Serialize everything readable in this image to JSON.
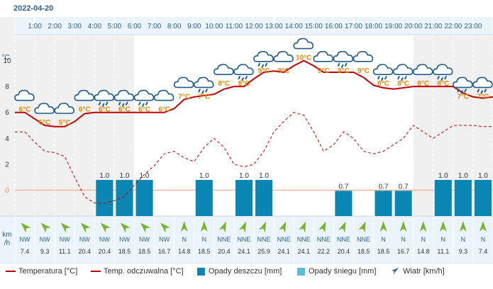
{
  "date": "2022-04-20",
  "colors": {
    "temp": "#c00000",
    "feels": "#c00000",
    "rain": "#0a86b4",
    "snow": "#5bbcd6",
    "wind_arrow": "#7ab32e",
    "axis_text": "#2a5f8c",
    "temp_label": "#e08a00"
  },
  "chart_data": {
    "type": "line",
    "hours": [
      "1:00",
      "2:00",
      "3:00",
      "4:00",
      "5:00",
      "6:00",
      "7:00",
      "8:00",
      "9:00",
      "10:00",
      "11:00",
      "12:00",
      "13:00",
      "14:00",
      "15:00",
      "16:00",
      "17:00",
      "18:00",
      "19:00",
      "20:00",
      "21:00",
      "22:00",
      "23:00"
    ],
    "y_unit_label": "°C",
    "y_ticks": [
      10,
      8,
      6,
      4,
      2,
      0
    ],
    "ylim": [
      -2,
      12
    ],
    "temperature": {
      "name": "Temperatura [°C]",
      "x": [
        0.5,
        1,
        1.5,
        2,
        2.5,
        3,
        3.5,
        4,
        4.5,
        5,
        5.5,
        6,
        6.5,
        7,
        7.5,
        8,
        8.5,
        9,
        9.5,
        10,
        10.5,
        11,
        11.5,
        12,
        12.5,
        13,
        13.5,
        14,
        14.5,
        15,
        15.5,
        16,
        16.5,
        17,
        17.5,
        18,
        18.5,
        19,
        19.5,
        20,
        20.5,
        21,
        21.5,
        22,
        22.5,
        23,
        23.5,
        24
      ],
      "values": [
        6.0,
        5.5,
        5.0,
        4.9,
        4.9,
        5.3,
        5.9,
        6.0,
        6.0,
        6.0,
        6.0,
        6.0,
        6.0,
        6.0,
        6.0,
        6.3,
        7.0,
        7.2,
        7.3,
        7.4,
        7.8,
        8.0,
        8.0,
        8.6,
        9.1,
        9.2,
        9.1,
        9.6,
        10.0,
        9.6,
        9.1,
        9.1,
        9.1,
        9.1,
        8.7,
        8.1,
        7.9,
        7.8,
        7.9,
        8.0,
        8.0,
        8.0,
        8.0,
        8.0,
        7.5,
        7.2,
        7.1,
        7.2
      ]
    },
    "feels_like": {
      "name": "Temp. odczuwalna [°C]",
      "x": [
        0.5,
        1,
        1.5,
        2,
        2.5,
        3,
        3.5,
        4,
        4.5,
        5,
        5.5,
        6,
        6.5,
        7,
        7.5,
        8,
        8.5,
        9,
        9.5,
        10,
        10.5,
        11,
        11.5,
        12,
        12.5,
        13,
        13.5,
        14,
        14.5,
        15,
        15.5,
        16,
        16.5,
        17,
        17.5,
        18,
        18.5,
        19,
        19.5,
        20,
        20.5,
        21,
        21.5,
        22,
        22.5,
        23,
        23.5,
        24
      ],
      "values": [
        4.5,
        3.7,
        3.0,
        2.9,
        2.6,
        1.0,
        -0.5,
        -1.0,
        -1.0,
        -0.8,
        -0.5,
        0.4,
        1.2,
        1.9,
        2.8,
        3.0,
        2.5,
        2.2,
        3.3,
        4.0,
        3.3,
        2.0,
        1.8,
        2.0,
        3.0,
        4.5,
        5.3,
        6.0,
        5.8,
        4.5,
        3.0,
        3.5,
        4.5,
        4.0,
        3.0,
        2.8,
        3.0,
        3.5,
        4.0,
        5.0,
        4.5,
        4.0,
        4.5,
        5.0,
        5.0,
        5.0,
        4.9,
        4.9
      ]
    },
    "rain": {
      "name": "Opady deszczu [mm]",
      "values": [
        0,
        0,
        0,
        0,
        1.0,
        1.0,
        1.0,
        0,
        0,
        1.0,
        0,
        1.0,
        1.0,
        0,
        0,
        0,
        0.7,
        0,
        0.7,
        0.7,
        0,
        1.0,
        1.0,
        1.0
      ],
      "labels": [
        "",
        "",
        "",
        "",
        "1.0",
        "1.0",
        "1.0",
        "",
        "",
        "1.0",
        "",
        "1.0",
        "1.0",
        "",
        "",
        "",
        "0.7",
        "",
        "0.7",
        "0.7",
        "",
        "1.0",
        "1.0",
        "1.0"
      ]
    },
    "snow": {
      "name": "Opady śniegu [mm]"
    },
    "wind": {
      "name": "Wiatr [km/h]",
      "unit_label": [
        "km",
        "/h"
      ],
      "directions": [
        "NW",
        "NW",
        "NW",
        "NW",
        "NW",
        "NW",
        "NW",
        "NW",
        "N",
        "N",
        "NNE",
        "NNE",
        "NNE",
        "NNE",
        "NNE",
        "NNE",
        "NNE",
        "NNE",
        "N",
        "N",
        "N",
        "N",
        "N",
        "N"
      ],
      "speeds": [
        "7.4",
        "9.3",
        "11.1",
        "20.4",
        "20.4",
        "18.5",
        "18.5",
        "16.7",
        "14.8",
        "18.5",
        "20.4",
        "24.1",
        "25.9",
        "24.1",
        "24.1",
        "22.2",
        "20.4",
        "18.5",
        "18.5",
        "16.7",
        "14.8",
        "11.1",
        "9.3",
        "7.4"
      ]
    },
    "icon_labels": [
      "6°C",
      "5°C",
      "5°C",
      "6°C",
      "6°C",
      "6°C",
      "6°C",
      "6°C",
      "7°C",
      "7°C",
      "8°C",
      "8°C",
      "9°C",
      "9°C",
      "10°C",
      "9°C",
      "9°C",
      "9°C",
      "8°C",
      "8°C",
      "8°C",
      "8°C",
      "7°C",
      "7°C"
    ],
    "icon_types": [
      "cloud",
      "cloud",
      "cloud",
      "cloud",
      "rain",
      "rain",
      "rain",
      "cloud",
      "cloud",
      "rain",
      "cloud",
      "rain",
      "rain",
      "cloud",
      "cloud",
      "cloud",
      "rain",
      "cloud",
      "rain",
      "rain",
      "cloud",
      "rain",
      "rain",
      "rain"
    ],
    "icon_temps": [
      6,
      5,
      5,
      6,
      6,
      6,
      6,
      6,
      7,
      7,
      8,
      8,
      9,
      9,
      10,
      9,
      9,
      9,
      8,
      8,
      8,
      8,
      7,
      7
    ]
  },
  "legend": {
    "temp": "Temperatura [°C]",
    "feels": "Temp. odczuwalna [°C]",
    "rain": "Opady deszczu [mm]",
    "snow": "Opady śniegu [mm]",
    "wind": "Wiatr [km/h]"
  }
}
